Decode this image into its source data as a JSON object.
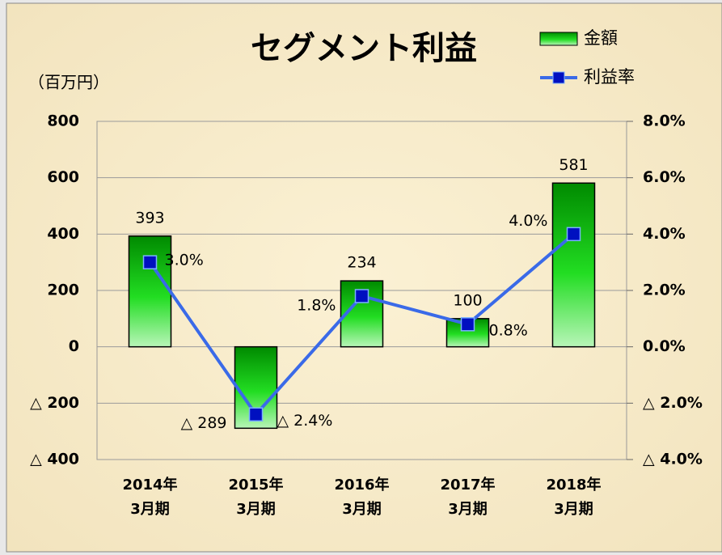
{
  "chart_data": {
    "type": "bar_line",
    "title": "セグメント利益",
    "y_label": "（百万円）",
    "categories": [
      "2014年\n3月期",
      "2015年\n3月期",
      "2016年\n3月期",
      "2017年\n3月期",
      "2018年\n3月期"
    ],
    "series": [
      {
        "name": "金額",
        "type": "bar",
        "color": "#00a000",
        "values": [
          393,
          -289,
          234,
          100,
          581
        ],
        "value_labels": [
          "393",
          "△ 289",
          "234",
          "100",
          "581"
        ]
      },
      {
        "name": "利益率",
        "type": "line",
        "axis": "y2",
        "color": "#3a6ae8",
        "values": [
          3.0,
          -2.4,
          1.8,
          0.8,
          4.0
        ],
        "value_labels": [
          "3.0%",
          "△ 2.4%",
          "1.8%",
          "0.8%",
          "4.0%"
        ]
      }
    ],
    "ylim": [
      -400,
      800
    ],
    "yticks": [
      {
        "value": -400,
        "label": "△ 400"
      },
      {
        "value": -200,
        "label": "△ 200"
      },
      0,
      200,
      400,
      600,
      800
    ],
    "y2lim": [
      -4,
      8
    ],
    "y2ticks": [
      {
        "value": -4,
        "label": "△ 4.0%"
      },
      {
        "value": -2,
        "label": "△ 2.0%"
      },
      {
        "value": 0,
        "label": "0.0%"
      },
      {
        "value": 2,
        "label": "2.0%"
      },
      {
        "value": 4,
        "label": "4.0%"
      },
      {
        "value": 6,
        "label": "6.0%"
      },
      {
        "value": 8,
        "label": "8.0%"
      }
    ],
    "grid": true
  }
}
